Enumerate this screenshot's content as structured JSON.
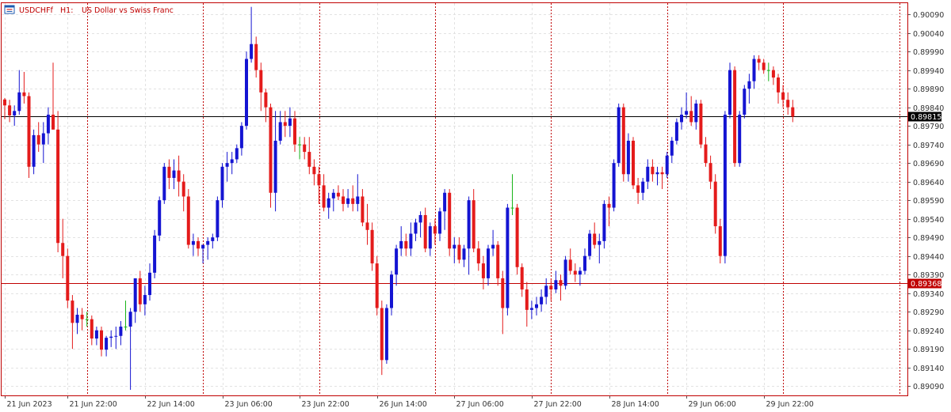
{
  "header": {
    "symbol": "USDCHFf",
    "timeframe": "H1:",
    "description": "US Dollar vs Swiss Franc",
    "icon": "chart-window-icon"
  },
  "colors": {
    "bull": "#1414d2",
    "bear": "#e41b1b",
    "doji": "#18b418",
    "frame": "#c00000",
    "grid": "#e2e2e2",
    "session": "#c00000",
    "current": "#000000",
    "level": "#c00000"
  },
  "chart_data": {
    "type": "candlestick",
    "ylim": [
      0.89065,
      0.9012
    ],
    "y_ticks": [
      "0.90090",
      "0.90040",
      "0.89990",
      "0.89940",
      "0.89890",
      "0.89840",
      "0.89790",
      "0.89740",
      "0.89690",
      "0.89640",
      "0.89590",
      "0.89540",
      "0.89490",
      "0.89440",
      "0.89390",
      "0.89340",
      "0.89290",
      "0.89240",
      "0.89190",
      "0.89140",
      "0.89090"
    ],
    "x_ticks": [
      "21 Jun 2023",
      "21 Jun 22:00",
      "22 Jun 14:00",
      "23 Jun 06:00",
      "23 Jun 22:00",
      "26 Jun 14:00",
      "27 Jun 06:00",
      "27 Jun 22:00",
      "28 Jun 14:00",
      "29 Jun 06:00",
      "29 Jun 22:00"
    ],
    "x_tick_bar_index": [
      0,
      13,
      29,
      45,
      61,
      77,
      93,
      109,
      125,
      141,
      157
    ],
    "session_separator_bar_index": [
      17,
      41,
      65,
      89,
      113,
      137,
      161,
      185
    ],
    "current_price": "0.89815",
    "level_price": "0.89368",
    "candles": [
      [
        0.89861,
        0.89865,
        0.89808,
        0.89845
      ],
      [
        0.89845,
        0.8986,
        0.898,
        0.89818
      ],
      [
        0.89818,
        0.89845,
        0.8979,
        0.8983
      ],
      [
        0.8983,
        0.8994,
        0.8982,
        0.8988
      ],
      [
        0.8988,
        0.89935,
        0.8985,
        0.8987
      ],
      [
        0.8987,
        0.8988,
        0.8965,
        0.8968
      ],
      [
        0.8968,
        0.8978,
        0.8966,
        0.89765
      ],
      [
        0.89765,
        0.898,
        0.8972,
        0.8974
      ],
      [
        0.8974,
        0.898,
        0.8969,
        0.8977
      ],
      [
        0.8977,
        0.8984,
        0.8974,
        0.8982
      ],
      [
        0.8982,
        0.8996,
        0.8978,
        0.8978
      ],
      [
        0.8978,
        0.8983,
        0.8945,
        0.89475
      ],
      [
        0.89475,
        0.8954,
        0.8938,
        0.8944
      ],
      [
        0.8944,
        0.8946,
        0.893,
        0.8932
      ],
      [
        0.8932,
        0.89335,
        0.8919,
        0.8926
      ],
      [
        0.8926,
        0.893,
        0.8923,
        0.89282
      ],
      [
        0.89282,
        0.893,
        0.8924,
        0.8927
      ],
      [
        0.8927,
        0.8929,
        0.8925,
        0.8927
      ],
      [
        0.8927,
        0.8928,
        0.892,
        0.89218
      ],
      [
        0.89218,
        0.8925,
        0.892,
        0.8924
      ],
      [
        0.8924,
        0.8925,
        0.8917,
        0.89188
      ],
      [
        0.89188,
        0.89225,
        0.8917,
        0.8922
      ],
      [
        0.8922,
        0.8924,
        0.89195,
        0.89223
      ],
      [
        0.89223,
        0.8925,
        0.8919,
        0.89225
      ],
      [
        0.89225,
        0.89265,
        0.892,
        0.8925
      ],
      [
        0.8925,
        0.8932,
        0.8924,
        0.8925
      ],
      [
        0.8925,
        0.893,
        0.8908,
        0.8929
      ],
      [
        0.8929,
        0.8937,
        0.8926,
        0.8938
      ],
      [
        0.8938,
        0.894,
        0.8929,
        0.8931
      ],
      [
        0.8931,
        0.8936,
        0.8928,
        0.89335
      ],
      [
        0.89335,
        0.8942,
        0.8932,
        0.89395
      ],
      [
        0.89395,
        0.8951,
        0.8938,
        0.89495
      ],
      [
        0.89495,
        0.896,
        0.8948,
        0.8959
      ],
      [
        0.8959,
        0.8969,
        0.8958,
        0.8968
      ],
      [
        0.8968,
        0.897,
        0.8962,
        0.8965
      ],
      [
        0.8965,
        0.897,
        0.8962,
        0.8967
      ],
      [
        0.8967,
        0.8971,
        0.896,
        0.8964
      ],
      [
        0.8964,
        0.8966,
        0.8956,
        0.896
      ],
      [
        0.896,
        0.8962,
        0.8946,
        0.8947
      ],
      [
        0.8947,
        0.895,
        0.8944,
        0.8948
      ],
      [
        0.8948,
        0.8949,
        0.8944,
        0.8946
      ],
      [
        0.8946,
        0.8947,
        0.8942,
        0.8947
      ],
      [
        0.8947,
        0.8949,
        0.8943,
        0.8948
      ],
      [
        0.8948,
        0.895,
        0.8946,
        0.8949
      ],
      [
        0.8949,
        0.896,
        0.8948,
        0.8959
      ],
      [
        0.8959,
        0.8969,
        0.8957,
        0.8968
      ],
      [
        0.8968,
        0.8972,
        0.8964,
        0.8969
      ],
      [
        0.8969,
        0.8972,
        0.8966,
        0.897
      ],
      [
        0.897,
        0.8974,
        0.8969,
        0.8973
      ],
      [
        0.8973,
        0.898,
        0.8971,
        0.8979
      ],
      [
        0.8979,
        0.8999,
        0.8978,
        0.8997
      ],
      [
        0.8997,
        0.9011,
        0.8996,
        0.9001
      ],
      [
        0.9001,
        0.9003,
        0.8992,
        0.8994
      ],
      [
        0.8994,
        0.8996,
        0.8983,
        0.8988
      ],
      [
        0.8988,
        0.8989,
        0.898,
        0.8984
      ],
      [
        0.8984,
        0.8985,
        0.8957,
        0.8961
      ],
      [
        0.8961,
        0.8983,
        0.8956,
        0.8975
      ],
      [
        0.8975,
        0.8983,
        0.8974,
        0.898
      ],
      [
        0.898,
        0.8983,
        0.8976,
        0.8979
      ],
      [
        0.8979,
        0.8984,
        0.8976,
        0.8981
      ],
      [
        0.8981,
        0.8983,
        0.8972,
        0.8974
      ],
      [
        0.8974,
        0.8976,
        0.897,
        0.8974
      ],
      [
        0.8974,
        0.8976,
        0.897,
        0.8972
      ],
      [
        0.8972,
        0.8976,
        0.8966,
        0.8968
      ],
      [
        0.8968,
        0.897,
        0.8963,
        0.8966
      ],
      [
        0.8966,
        0.8968,
        0.8958,
        0.8963
      ],
      [
        0.8963,
        0.8966,
        0.8956,
        0.8957
      ],
      [
        0.8957,
        0.8961,
        0.8954,
        0.89595
      ],
      [
        0.89595,
        0.8962,
        0.8956,
        0.8961
      ],
      [
        0.8961,
        0.8963,
        0.8959,
        0.896
      ],
      [
        0.896,
        0.8962,
        0.8956,
        0.8958
      ],
      [
        0.8958,
        0.8962,
        0.8957,
        0.89595
      ],
      [
        0.89595,
        0.8963,
        0.8956,
        0.8958
      ],
      [
        0.8958,
        0.8966,
        0.8956,
        0.896
      ],
      [
        0.896,
        0.8962,
        0.8952,
        0.8953
      ],
      [
        0.8953,
        0.8958,
        0.8947,
        0.8951
      ],
      [
        0.8951,
        0.8953,
        0.894,
        0.8942
      ],
      [
        0.8942,
        0.8944,
        0.8928,
        0.893
      ],
      [
        0.893,
        0.8932,
        0.8912,
        0.8916
      ],
      [
        0.8916,
        0.8931,
        0.8915,
        0.893
      ],
      [
        0.893,
        0.894,
        0.8928,
        0.8939
      ],
      [
        0.8939,
        0.8947,
        0.8936,
        0.8946
      ],
      [
        0.8946,
        0.8952,
        0.8944,
        0.8948
      ],
      [
        0.8948,
        0.895,
        0.8944,
        0.8946
      ],
      [
        0.8946,
        0.8953,
        0.8944,
        0.895
      ],
      [
        0.895,
        0.8954,
        0.8948,
        0.8953
      ],
      [
        0.8953,
        0.8956,
        0.8949,
        0.8955
      ],
      [
        0.8955,
        0.8957,
        0.8945,
        0.8946
      ],
      [
        0.8946,
        0.8953,
        0.8944,
        0.8952
      ],
      [
        0.8952,
        0.8954,
        0.8947,
        0.895
      ],
      [
        0.895,
        0.8957,
        0.8948,
        0.8956
      ],
      [
        0.8956,
        0.8962,
        0.8951,
        0.8961
      ],
      [
        0.8961,
        0.8962,
        0.8944,
        0.8946
      ],
      [
        0.8946,
        0.8949,
        0.8942,
        0.8947
      ],
      [
        0.8947,
        0.8949,
        0.8942,
        0.8943
      ],
      [
        0.8943,
        0.8947,
        0.8941,
        0.8946
      ],
      [
        0.8946,
        0.896,
        0.8939,
        0.8959
      ],
      [
        0.8959,
        0.8962,
        0.8945,
        0.8946
      ],
      [
        0.8946,
        0.8948,
        0.894,
        0.8942
      ],
      [
        0.8942,
        0.8944,
        0.8935,
        0.8938
      ],
      [
        0.8938,
        0.8947,
        0.8936,
        0.8946
      ],
      [
        0.8946,
        0.8951,
        0.8944,
        0.8947
      ],
      [
        0.8947,
        0.8948,
        0.8936,
        0.8938
      ],
      [
        0.8938,
        0.894,
        0.8923,
        0.893
      ],
      [
        0.893,
        0.8958,
        0.8928,
        0.8957
      ],
      [
        0.8957,
        0.8966,
        0.8955,
        0.8957
      ],
      [
        0.8957,
        0.8958,
        0.8939,
        0.8941
      ],
      [
        0.8941,
        0.8942,
        0.8933,
        0.8935
      ],
      [
        0.8935,
        0.8937,
        0.8925,
        0.89295
      ],
      [
        0.89295,
        0.8932,
        0.8927,
        0.893
      ],
      [
        0.893,
        0.8933,
        0.8928,
        0.8931
      ],
      [
        0.8931,
        0.8935,
        0.8929,
        0.8933
      ],
      [
        0.8933,
        0.8938,
        0.8931,
        0.8936
      ],
      [
        0.8936,
        0.8938,
        0.8932,
        0.8935
      ],
      [
        0.8935,
        0.894,
        0.8934,
        0.89375
      ],
      [
        0.89375,
        0.8939,
        0.8932,
        0.8936
      ],
      [
        0.8936,
        0.8944,
        0.8935,
        0.8943
      ],
      [
        0.8943,
        0.8946,
        0.8939,
        0.894
      ],
      [
        0.894,
        0.8942,
        0.8937,
        0.8939
      ],
      [
        0.8939,
        0.8941,
        0.8936,
        0.894
      ],
      [
        0.894,
        0.8946,
        0.8939,
        0.8944
      ],
      [
        0.8944,
        0.8951,
        0.8943,
        0.895
      ],
      [
        0.895,
        0.8953,
        0.8946,
        0.8947
      ],
      [
        0.8947,
        0.895,
        0.8942,
        0.8948
      ],
      [
        0.8948,
        0.8959,
        0.8946,
        0.8958
      ],
      [
        0.8958,
        0.896,
        0.8952,
        0.8957
      ],
      [
        0.8957,
        0.897,
        0.8956,
        0.8969
      ],
      [
        0.8969,
        0.8985,
        0.8968,
        0.8984
      ],
      [
        0.8984,
        0.8985,
        0.8964,
        0.8966
      ],
      [
        0.8966,
        0.8977,
        0.8964,
        0.8975
      ],
      [
        0.8975,
        0.8976,
        0.8962,
        0.8963
      ],
      [
        0.8963,
        0.8965,
        0.8958,
        0.8961
      ],
      [
        0.8961,
        0.8965,
        0.8959,
        0.8964
      ],
      [
        0.8964,
        0.897,
        0.8962,
        0.8968
      ],
      [
        0.8968,
        0.897,
        0.8964,
        0.8966
      ],
      [
        0.8966,
        0.8968,
        0.8963,
        0.89665
      ],
      [
        0.89665,
        0.8968,
        0.8962,
        0.8966
      ],
      [
        0.8966,
        0.8972,
        0.8965,
        0.8971
      ],
      [
        0.8971,
        0.8976,
        0.8969,
        0.8975
      ],
      [
        0.8975,
        0.8981,
        0.8974,
        0.898
      ],
      [
        0.898,
        0.8984,
        0.8978,
        0.8982
      ],
      [
        0.8982,
        0.8988,
        0.8981,
        0.8983
      ],
      [
        0.8983,
        0.8987,
        0.8979,
        0.898
      ],
      [
        0.898,
        0.8986,
        0.8978,
        0.8985
      ],
      [
        0.8985,
        0.8986,
        0.8973,
        0.8974
      ],
      [
        0.8974,
        0.8976,
        0.8968,
        0.8969
      ],
      [
        0.8969,
        0.8971,
        0.8962,
        0.8964
      ],
      [
        0.8964,
        0.8966,
        0.895,
        0.8952
      ],
      [
        0.8952,
        0.8954,
        0.8942,
        0.8944
      ],
      [
        0.8944,
        0.8983,
        0.8942,
        0.8982
      ],
      [
        0.8982,
        0.8996,
        0.8981,
        0.8994
      ],
      [
        0.8994,
        0.8995,
        0.8968,
        0.8969
      ],
      [
        0.8969,
        0.8983,
        0.8968,
        0.8982
      ],
      [
        0.8982,
        0.899,
        0.8981,
        0.8989
      ],
      [
        0.8989,
        0.8993,
        0.8985,
        0.8991
      ],
      [
        0.8991,
        0.8998,
        0.8989,
        0.8997
      ],
      [
        0.8997,
        0.8998,
        0.8994,
        0.8996
      ],
      [
        0.8996,
        0.8997,
        0.8993,
        0.8994
      ],
      [
        0.8994,
        0.8996,
        0.8991,
        0.8994
      ],
      [
        0.8994,
        0.8995,
        0.899,
        0.8992
      ],
      [
        0.8992,
        0.8993,
        0.8985,
        0.8988
      ],
      [
        0.8988,
        0.899,
        0.8984,
        0.8986
      ],
      [
        0.8986,
        0.8988,
        0.8982,
        0.8984
      ],
      [
        0.8984,
        0.8986,
        0.898,
        0.89815
      ]
    ]
  }
}
